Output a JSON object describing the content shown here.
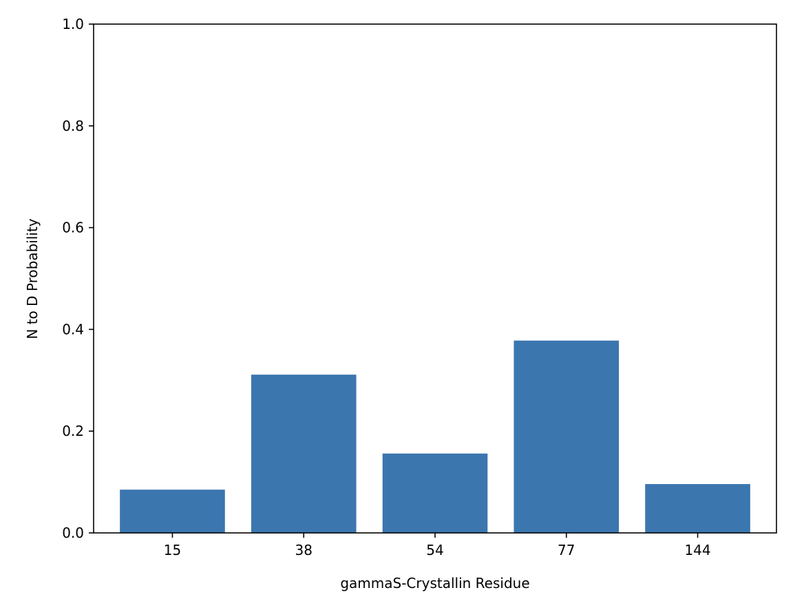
{
  "chart_data": {
    "type": "bar",
    "categories": [
      "15",
      "38",
      "54",
      "77",
      "144"
    ],
    "values": [
      0.085,
      0.311,
      0.156,
      0.378,
      0.096
    ],
    "title": "",
    "xlabel": "gammaS-Crystallin Residue",
    "ylabel": "N to D Probability",
    "ylim": [
      0,
      1.0
    ],
    "yticks": [
      "0.0",
      "0.2",
      "0.4",
      "0.6",
      "0.8",
      "1.0"
    ],
    "grid": false,
    "bar_color": "#3b76af"
  }
}
